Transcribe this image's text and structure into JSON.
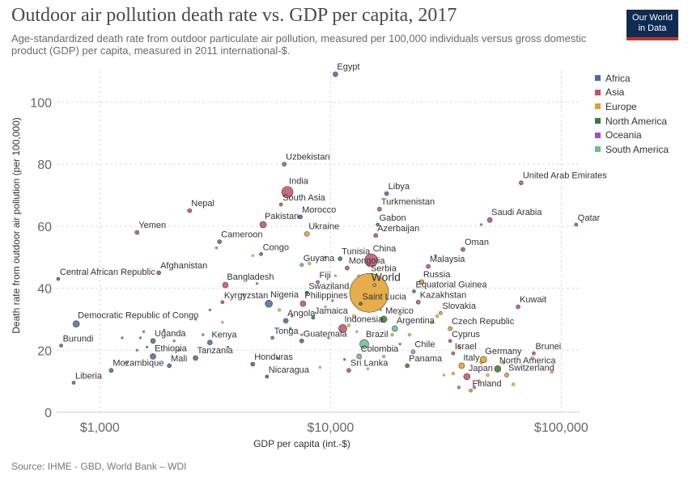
{
  "header": {
    "title": "Outdoor air pollution death rate vs. GDP per capita, 2017",
    "subtitle": "Age-standardized death rate from outdoor particulate air pollution, measured per 100,000 individuals versus gross domestic product (GDP) per capita, measured in 2011 international-$.",
    "logo_line1": "Our World",
    "logo_line2": "in Data"
  },
  "legend": {
    "items": [
      {
        "label": "Africa",
        "color": "#4c6a9c"
      },
      {
        "label": "Asia",
        "color": "#c15065"
      },
      {
        "label": "Europe",
        "color": "#e39f2a"
      },
      {
        "label": "North America",
        "color": "#3a7a3a"
      },
      {
        "label": "Oceania",
        "color": "#a652ba"
      },
      {
        "label": "South America",
        "color": "#6bc08e"
      }
    ]
  },
  "footer": {
    "source": "Source: IHME - GBD, World Bank – WDI"
  },
  "chart_data": {
    "type": "scatter",
    "xlabel": "GDP per capita (int.-$)",
    "ylabel": "Death rate from outdoor air pollution (per 100,000)",
    "x_scale": "log",
    "xlim": [
      650,
      120000
    ],
    "ylim": [
      0,
      110
    ],
    "x_ticks": [
      {
        "value": 1000,
        "label": "$1,000"
      },
      {
        "value": 10000,
        "label": "$10,000"
      },
      {
        "value": 100000,
        "label": "$100,000"
      }
    ],
    "y_ticks": [
      0,
      20,
      40,
      60,
      80,
      100
    ],
    "grid": true,
    "legend_position": "right",
    "points": [
      {
        "label": "Egypt",
        "x": 10500,
        "y": 109,
        "region": "Africa",
        "r": 3
      },
      {
        "label": "Uzbekistan",
        "x": 6300,
        "y": 80,
        "region": "Asia",
        "r": 2.5
      },
      {
        "label": "India",
        "x": 6500,
        "y": 71,
        "region": "Asia",
        "r": 7
      },
      {
        "label": "South Asia",
        "x": 6100,
        "y": 67,
        "region": "Asia",
        "r": 2
      },
      {
        "label": "Nepal",
        "x": 2450,
        "y": 65,
        "region": "Asia",
        "r": 2.5
      },
      {
        "label": "Morocco",
        "x": 7400,
        "y": 63,
        "region": "Africa",
        "r": 2.5
      },
      {
        "label": "Pakistan",
        "x": 5100,
        "y": 60.5,
        "region": "Asia",
        "r": 4
      },
      {
        "label": "Yemen",
        "x": 1450,
        "y": 58,
        "region": "Asia",
        "r": 2.5
      },
      {
        "label": "Ukraine",
        "x": 7900,
        "y": 57.5,
        "region": "Europe",
        "r": 3
      },
      {
        "label": "Cameroon",
        "x": 3300,
        "y": 55,
        "region": "Africa",
        "r": 2.5
      },
      {
        "label": "Congo",
        "x": 5000,
        "y": 51,
        "region": "Africa",
        "r": 2
      },
      {
        "label": "Libya",
        "x": 17500,
        "y": 70.5,
        "region": "Africa",
        "r": 2.5
      },
      {
        "label": "Turkmenistan",
        "x": 16300,
        "y": 65.5,
        "region": "Asia",
        "r": 2.5
      },
      {
        "label": "Gabon",
        "x": 16000,
        "y": 60.5,
        "region": "Africa",
        "r": 2
      },
      {
        "label": "Azerbaijan",
        "x": 15700,
        "y": 57,
        "region": "Asia",
        "r": 2.5
      },
      {
        "label": "Tunisia",
        "x": 11000,
        "y": 49.5,
        "region": "Africa",
        "r": 2.5
      },
      {
        "label": "China",
        "x": 15000,
        "y": 49,
        "region": "Asia",
        "r": 8
      },
      {
        "label": "Mongolia",
        "x": 11800,
        "y": 46.5,
        "region": "Asia",
        "r": 2.5
      },
      {
        "label": "Guyana",
        "x": 7500,
        "y": 47.5,
        "region": "South America",
        "r": 2
      },
      {
        "label": "United Arab Emirates",
        "x": 67000,
        "y": 74,
        "region": "Asia",
        "r": 2.5
      },
      {
        "label": "Saudi Arabia",
        "x": 49000,
        "y": 62,
        "region": "Asia",
        "r": 3
      },
      {
        "label": "Qatar",
        "x": 116000,
        "y": 60.5,
        "region": "Asia",
        "r": 2
      },
      {
        "label": "Oman",
        "x": 37500,
        "y": 52.5,
        "region": "Asia",
        "r": 2.5
      },
      {
        "label": "Malaysia",
        "x": 26500,
        "y": 47,
        "region": "Asia",
        "r": 2.5
      },
      {
        "label": "Russia",
        "x": 24800,
        "y": 42,
        "region": "Europe",
        "r": 3
      },
      {
        "label": "Equatorial Guinea",
        "x": 23000,
        "y": 39,
        "region": "Africa",
        "r": 2
      },
      {
        "label": "Kazakhstan",
        "x": 24000,
        "y": 35.5,
        "region": "Asia",
        "r": 2.5
      },
      {
        "label": "Slovakia",
        "x": 30000,
        "y": 32,
        "region": "Europe",
        "r": 2
      },
      {
        "label": "Kuwait",
        "x": 65000,
        "y": 34,
        "region": "Asia",
        "r": 2.5
      },
      {
        "label": "Central African Republic",
        "x": 660,
        "y": 43,
        "region": "Africa",
        "r": 2
      },
      {
        "label": "Afghanistan",
        "x": 1800,
        "y": 45,
        "region": "Asia",
        "r": 2.5
      },
      {
        "label": "Bangladesh",
        "x": 3500,
        "y": 41,
        "region": "Asia",
        "r": 3.5
      },
      {
        "label": "Fiji",
        "x": 8800,
        "y": 42,
        "region": "Oceania",
        "r": 2
      },
      {
        "label": "Kyrgyzstan",
        "x": 3400,
        "y": 35.5,
        "region": "Asia",
        "r": 2
      },
      {
        "label": "Nigeria",
        "x": 5400,
        "y": 35,
        "region": "Africa",
        "r": 4.5
      },
      {
        "label": "Swaziland",
        "x": 7900,
        "y": 38.5,
        "region": "Africa",
        "r": 2
      },
      {
        "label": "Philippines",
        "x": 7600,
        "y": 35,
        "region": "Asia",
        "r": 3.5
      },
      {
        "label": "World",
        "x": 15500,
        "y": 41,
        "region": "World",
        "r": 2
      },
      {
        "label": "Serbia",
        "x": 14700,
        "y": 38.5,
        "region": "Europe",
        "r": 24
      },
      {
        "label": "Saint Lucia",
        "x": 13500,
        "y": 35,
        "region": "North America",
        "r": 2
      },
      {
        "label": "Jamaica",
        "x": 8400,
        "y": 30.5,
        "region": "North America",
        "r": 2
      },
      {
        "label": "Angola",
        "x": 6400,
        "y": 29.5,
        "region": "Africa",
        "r": 3
      },
      {
        "label": "Mexico",
        "x": 17000,
        "y": 30,
        "region": "North America",
        "r": 4
      },
      {
        "label": "Argentina",
        "x": 19000,
        "y": 27,
        "region": "South America",
        "r": 3.5
      },
      {
        "label": "Indonesia",
        "x": 11300,
        "y": 27,
        "region": "Asia",
        "r": 5
      },
      {
        "label": "Tonga",
        "x": 5600,
        "y": 24,
        "region": "Oceania",
        "r": 2
      },
      {
        "label": "Guatemala",
        "x": 7500,
        "y": 23,
        "region": "North America",
        "r": 2.5
      },
      {
        "label": "Brazil",
        "x": 14000,
        "y": 22,
        "region": "South America",
        "r": 5.5
      },
      {
        "label": "Chile",
        "x": 22800,
        "y": 19.5,
        "region": "South America",
        "r": 2.5
      },
      {
        "label": "Czech Republic",
        "x": 33000,
        "y": 27,
        "region": "Europe",
        "r": 2.5
      },
      {
        "label": "Cyprus",
        "x": 33000,
        "y": 23,
        "region": "Asia",
        "r": 2
      },
      {
        "label": "Israel",
        "x": 34000,
        "y": 19,
        "region": "Asia",
        "r": 2
      },
      {
        "label": "Democratic Republic of Congo",
        "x": 790,
        "y": 28.5,
        "region": "Africa",
        "r": 4
      },
      {
        "label": "Burundi",
        "x": 680,
        "y": 21.5,
        "region": "Africa",
        "r": 2
      },
      {
        "label": "Uganda",
        "x": 1700,
        "y": 23,
        "region": "Africa",
        "r": 3
      },
      {
        "label": "Kenya",
        "x": 3000,
        "y": 22.5,
        "region": "Africa",
        "r": 3
      },
      {
        "label": "Ethiopia",
        "x": 1700,
        "y": 18,
        "region": "Africa",
        "r": 3.5
      },
      {
        "label": "Tanzania",
        "x": 2600,
        "y": 17.5,
        "region": "Africa",
        "r": 3
      },
      {
        "label": "Mozambique",
        "x": 1120,
        "y": 13.5,
        "region": "Africa",
        "r": 2.5
      },
      {
        "label": "Mali",
        "x": 2000,
        "y": 15,
        "region": "Africa",
        "r": 2.5
      },
      {
        "label": "Liberia",
        "x": 770,
        "y": 9.5,
        "region": "Africa",
        "r": 2
      },
      {
        "label": "Honduras",
        "x": 4600,
        "y": 15.5,
        "region": "North America",
        "r": 2.5
      },
      {
        "label": "Nicaragua",
        "x": 5300,
        "y": 11.5,
        "region": "North America",
        "r": 2
      },
      {
        "label": "Colombia",
        "x": 13300,
        "y": 18,
        "region": "South America",
        "r": 3
      },
      {
        "label": "Sri Lanka",
        "x": 12000,
        "y": 13.5,
        "region": "Asia",
        "r": 2.5
      },
      {
        "label": "Panama",
        "x": 21500,
        "y": 15,
        "region": "North America",
        "r": 2.5
      },
      {
        "label": "Germany",
        "x": 46000,
        "y": 17,
        "region": "Europe",
        "r": 4
      },
      {
        "label": "Italy",
        "x": 37000,
        "y": 15,
        "region": "Europe",
        "r": 3.5
      },
      {
        "label": "North America",
        "x": 53000,
        "y": 14,
        "region": "North America",
        "r": 4
      },
      {
        "label": "Brunei",
        "x": 76000,
        "y": 19,
        "region": "Asia",
        "r": 2
      },
      {
        "label": "Japan",
        "x": 39000,
        "y": 11.5,
        "region": "Asia",
        "r": 4
      },
      {
        "label": "Switzerland",
        "x": 58000,
        "y": 12,
        "region": "Europe",
        "r": 2.5
      },
      {
        "label": "Finland",
        "x": 40500,
        "y": 7,
        "region": "Europe",
        "r": 2
      }
    ],
    "minor_points": [
      {
        "x": 1500,
        "y": 24,
        "region": "Africa",
        "r": 1.5
      },
      {
        "x": 1550,
        "y": 26,
        "region": "Africa",
        "r": 1.5
      },
      {
        "x": 1900,
        "y": 26.5,
        "region": "Africa",
        "r": 1.5
      },
      {
        "x": 2100,
        "y": 23,
        "region": "Africa",
        "r": 1.5
      },
      {
        "x": 1450,
        "y": 20,
        "region": "Africa",
        "r": 1.5
      },
      {
        "x": 1300,
        "y": 16,
        "region": "Africa",
        "r": 1.5
      },
      {
        "x": 2200,
        "y": 20,
        "region": "Africa",
        "r": 1.5
      },
      {
        "x": 1250,
        "y": 24,
        "region": "Africa",
        "r": 1.5
      },
      {
        "x": 1600,
        "y": 21,
        "region": "Africa",
        "r": 1.5
      },
      {
        "x": 3000,
        "y": 33,
        "region": "Africa",
        "r": 1.5
      },
      {
        "x": 2600,
        "y": 30,
        "region": "Africa",
        "r": 1.5
      },
      {
        "x": 4200,
        "y": 38,
        "region": "Africa",
        "r": 1.5
      },
      {
        "x": 3400,
        "y": 29,
        "region": "Europe",
        "r": 1.5
      },
      {
        "x": 3600,
        "y": 21,
        "region": "Oceania",
        "r": 1.5
      },
      {
        "x": 2800,
        "y": 25,
        "region": "Africa",
        "r": 1.5
      },
      {
        "x": 6000,
        "y": 33,
        "region": "Europe",
        "r": 2
      },
      {
        "x": 6800,
        "y": 31,
        "region": "Africa",
        "r": 1.5
      },
      {
        "x": 9500,
        "y": 34,
        "region": "South America",
        "r": 1.5
      },
      {
        "x": 10200,
        "y": 36,
        "region": "Asia",
        "r": 1.5
      },
      {
        "x": 12600,
        "y": 31,
        "region": "Europe",
        "r": 2
      },
      {
        "x": 12000,
        "y": 28,
        "region": "Europe",
        "r": 2
      },
      {
        "x": 18500,
        "y": 25,
        "region": "Europe",
        "r": 2
      },
      {
        "x": 20000,
        "y": 31.5,
        "region": "Europe",
        "r": 1.5
      },
      {
        "x": 22000,
        "y": 25,
        "region": "Europe",
        "r": 2
      },
      {
        "x": 27500,
        "y": 29,
        "region": "Europe",
        "r": 2
      },
      {
        "x": 29000,
        "y": 31,
        "region": "Europe",
        "r": 2
      },
      {
        "x": 36000,
        "y": 21,
        "region": "Europe",
        "r": 2
      },
      {
        "x": 45000,
        "y": 16,
        "region": "Europe",
        "r": 2
      },
      {
        "x": 48000,
        "y": 12,
        "region": "Europe",
        "r": 2
      },
      {
        "x": 44000,
        "y": 10,
        "region": "Europe",
        "r": 2
      },
      {
        "x": 34000,
        "y": 12.5,
        "region": "Europe",
        "r": 2
      },
      {
        "x": 42000,
        "y": 8,
        "region": "Oceania",
        "r": 2
      },
      {
        "x": 36000,
        "y": 8,
        "region": "Oceania",
        "r": 2
      },
      {
        "x": 56000,
        "y": 16,
        "region": "Europe",
        "r": 2
      },
      {
        "x": 62000,
        "y": 9,
        "region": "Europe",
        "r": 2
      },
      {
        "x": 75000,
        "y": 17.5,
        "region": "Europe",
        "r": 2
      },
      {
        "x": 91000,
        "y": 13,
        "region": "Europe",
        "r": 2
      },
      {
        "x": 17000,
        "y": 18,
        "region": "South America",
        "r": 2
      },
      {
        "x": 9000,
        "y": 14.5,
        "region": "South America",
        "r": 1.5
      },
      {
        "x": 14500,
        "y": 14,
        "region": "South America",
        "r": 1.5
      },
      {
        "x": 11500,
        "y": 17,
        "region": "North America",
        "r": 1.5
      },
      {
        "x": 5900,
        "y": 17.5,
        "region": "North America",
        "r": 1.5
      },
      {
        "x": 13000,
        "y": 26,
        "region": "South America",
        "r": 1.5
      },
      {
        "x": 16500,
        "y": 33,
        "region": "South America",
        "r": 1.5
      },
      {
        "x": 10500,
        "y": 44,
        "region": "South America",
        "r": 1.5
      },
      {
        "x": 13200,
        "y": 44,
        "region": "South America",
        "r": 1.5
      },
      {
        "x": 28500,
        "y": 50.5,
        "region": "North America",
        "r": 1.5
      },
      {
        "x": 8100,
        "y": 48,
        "region": "Europe",
        "r": 2
      },
      {
        "x": 9500,
        "y": 50,
        "region": "Africa",
        "r": 1.5
      },
      {
        "x": 4800,
        "y": 41.5,
        "region": "Asia",
        "r": 1.5
      },
      {
        "x": 3200,
        "y": 53,
        "region": "Asia",
        "r": 1.5
      },
      {
        "x": 4600,
        "y": 50.5,
        "region": "Europe",
        "r": 1.5
      },
      {
        "x": 6700,
        "y": 27,
        "region": "Africa",
        "r": 1.5
      },
      {
        "x": 7500,
        "y": 25,
        "region": "Oceania",
        "r": 1.5
      },
      {
        "x": 9800,
        "y": 24,
        "region": "Asia",
        "r": 1.5
      },
      {
        "x": 45000,
        "y": 60.5,
        "region": "Asia",
        "r": 1.5
      },
      {
        "x": 20000,
        "y": 22,
        "region": "Africa",
        "r": 1.5
      },
      {
        "x": 31000,
        "y": 12,
        "region": "Europe",
        "r": 1.5
      }
    ]
  }
}
